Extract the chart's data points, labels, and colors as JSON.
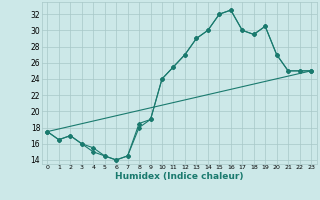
{
  "x_ticks": [
    0,
    1,
    2,
    3,
    4,
    5,
    6,
    7,
    8,
    9,
    10,
    11,
    12,
    13,
    14,
    15,
    16,
    17,
    18,
    19,
    20,
    21,
    22,
    23
  ],
  "line1_x": [
    0,
    1,
    2,
    3,
    4,
    5,
    6,
    7,
    8,
    9,
    10,
    11,
    12,
    13,
    14,
    15,
    16,
    17,
    18,
    19,
    20,
    21,
    22,
    23
  ],
  "line1_y": [
    17.5,
    16.5,
    17.0,
    16.0,
    15.0,
    14.5,
    14.0,
    14.5,
    18.0,
    19.0,
    24.0,
    25.5,
    27.0,
    29.0,
    30.0,
    32.0,
    32.5,
    30.0,
    29.5,
    30.5,
    27.0,
    25.0,
    25.0,
    25.0
  ],
  "line2_x": [
    0,
    1,
    2,
    3,
    4,
    5,
    6,
    7,
    8,
    9,
    10,
    11,
    12,
    13,
    14,
    15,
    16,
    17,
    18,
    19,
    20,
    21,
    22,
    23
  ],
  "line2_y": [
    17.5,
    16.5,
    17.0,
    16.0,
    15.5,
    14.5,
    14.0,
    14.5,
    18.5,
    19.0,
    24.0,
    25.5,
    27.0,
    29.0,
    30.0,
    32.0,
    32.5,
    30.0,
    29.5,
    30.5,
    27.0,
    25.0,
    25.0,
    25.0
  ],
  "line3_x": [
    0,
    23
  ],
  "line3_y": [
    17.5,
    25.0
  ],
  "xlim": [
    -0.5,
    23.5
  ],
  "ylim": [
    13.5,
    33.5
  ],
  "yticks": [
    14,
    16,
    18,
    20,
    22,
    24,
    26,
    28,
    30,
    32
  ],
  "color": "#1a7a6e",
  "bg_color": "#cce8e8",
  "grid_color": "#a8c8c8",
  "xlabel": "Humidex (Indice chaleur)"
}
